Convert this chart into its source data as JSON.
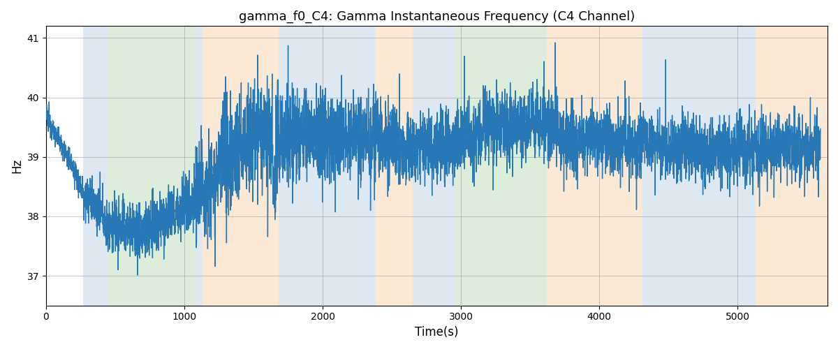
{
  "title": "gamma_f0_C4: Gamma Instantaneous Frequency (C4 Channel)",
  "xlabel": "Time(s)",
  "ylabel": "Hz",
  "ylim": [
    36.5,
    41.2
  ],
  "xlim": [
    0,
    5650
  ],
  "yticks": [
    37,
    38,
    39,
    40,
    41
  ],
  "xticks": [
    0,
    1000,
    2000,
    3000,
    4000,
    5000
  ],
  "line_color": "#2878b5",
  "line_width": 1.0,
  "bg_regions": [
    {
      "xmin": 270,
      "xmax": 440,
      "color": "#aec6e0",
      "alpha": 0.4
    },
    {
      "xmin": 440,
      "xmax": 1080,
      "color": "#a8d5a2",
      "alpha": 0.4
    },
    {
      "xmin": 1080,
      "xmax": 1130,
      "color": "#aec6e0",
      "alpha": 0.4
    },
    {
      "xmin": 1130,
      "xmax": 1680,
      "color": "#f5c99a",
      "alpha": 0.4
    },
    {
      "xmin": 1680,
      "xmax": 2380,
      "color": "#aec6e0",
      "alpha": 0.4
    },
    {
      "xmin": 2380,
      "xmax": 2650,
      "color": "#f5c99a",
      "alpha": 0.4
    },
    {
      "xmin": 2650,
      "xmax": 2960,
      "color": "#aec6e0",
      "alpha": 0.4
    },
    {
      "xmin": 2960,
      "xmax": 3620,
      "color": "#a8d5a2",
      "alpha": 0.4
    },
    {
      "xmin": 3620,
      "xmax": 4310,
      "color": "#f5c99a",
      "alpha": 0.4
    },
    {
      "xmin": 4310,
      "xmax": 5130,
      "color": "#aec6e0",
      "alpha": 0.4
    },
    {
      "xmin": 5130,
      "xmax": 5650,
      "color": "#f5c99a",
      "alpha": 0.4
    }
  ],
  "seed": 12345,
  "figsize": [
    12.0,
    5.0
  ],
  "dpi": 100
}
